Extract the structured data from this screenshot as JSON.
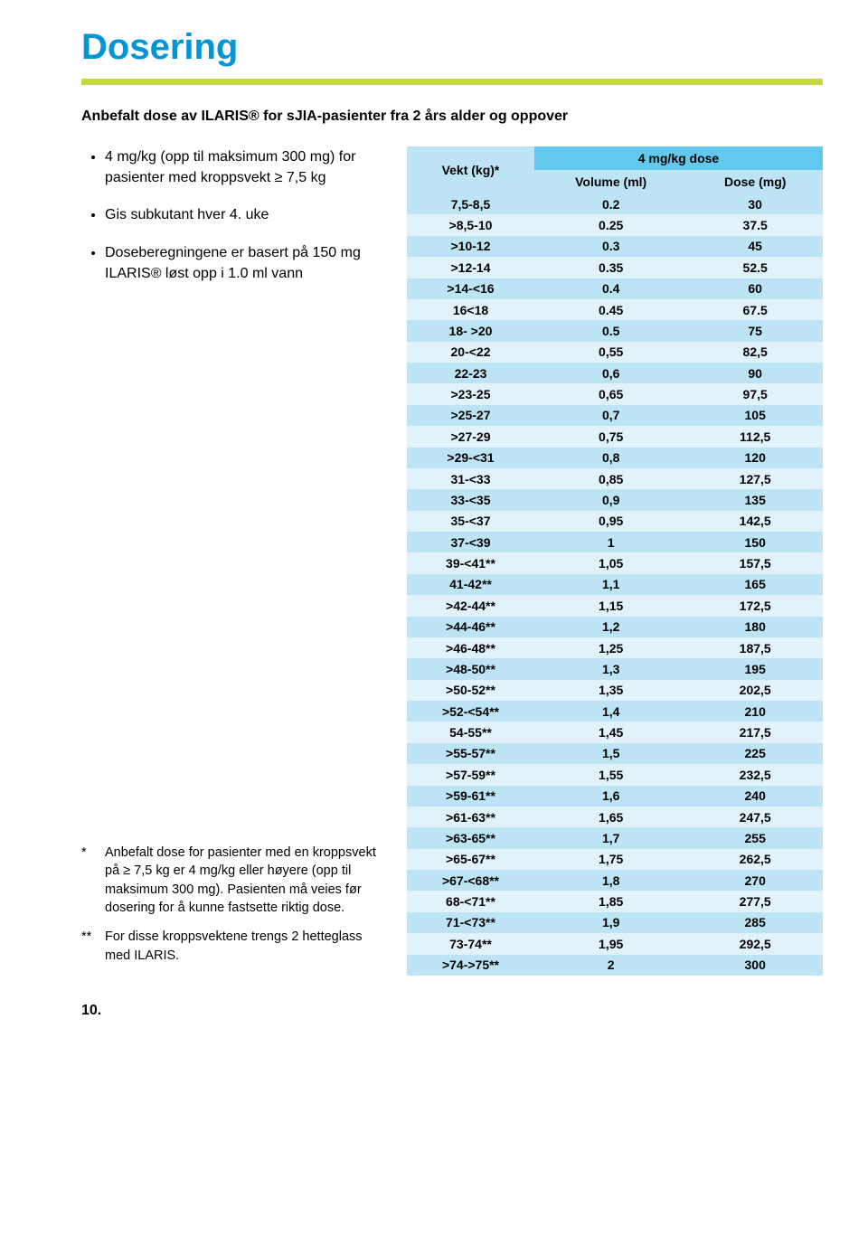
{
  "title": "Dosering",
  "accent_color": "#c5d843",
  "subtitle": "Anbefalt dose av ILARIS® for sJIA-pasienter fra 2 års alder og oppover",
  "bullets": [
    "4 mg/kg (opp til maksimum 300 mg) for pasienter med kroppsvekt ≥ 7,5 kg",
    "Gis subkutant hver 4. uke",
    "Doseberegningene er basert på 150 mg ILARIS® løst opp i 1.0 ml vann"
  ],
  "footnotes": [
    {
      "mark": "*",
      "text": "Anbefalt dose for pasienter med en kroppsvekt på ≥ 7,5 kg er 4 mg/kg eller høyere (opp til maksimum 300 mg). Pasienten må veies før dosering for å kunne fastsette riktig dose."
    },
    {
      "mark": "**",
      "text": "For disse kroppsvektene trengs 2 hetteglass med ILARIS."
    }
  ],
  "table": {
    "top_header": "4 mg/kg dose",
    "columns": [
      "Vekt (kg)*",
      "Volume (ml)",
      "Dose (mg)"
    ],
    "rows": [
      [
        "7,5-8,5",
        "0.2",
        "30"
      ],
      [
        ">8,5-10",
        "0.25",
        "37.5"
      ],
      [
        ">10-12",
        "0.3",
        "45"
      ],
      [
        ">12-14",
        "0.35",
        "52.5"
      ],
      [
        ">14-<16",
        "0.4",
        "60"
      ],
      [
        "16<18",
        "0.45",
        "67.5"
      ],
      [
        "18- >20",
        "0.5",
        "75"
      ],
      [
        "20-<22",
        "0,55",
        "82,5"
      ],
      [
        "22-23",
        "0,6",
        "90"
      ],
      [
        ">23-25",
        "0,65",
        "97,5"
      ],
      [
        ">25-27",
        "0,7",
        "105"
      ],
      [
        ">27-29",
        "0,75",
        "112,5"
      ],
      [
        ">29-<31",
        "0,8",
        "120"
      ],
      [
        "31-<33",
        "0,85",
        "127,5"
      ],
      [
        "33-<35",
        "0,9",
        "135"
      ],
      [
        "35-<37",
        "0,95",
        "142,5"
      ],
      [
        "37-<39",
        "1",
        "150"
      ],
      [
        "39-<41**",
        "1,05",
        "157,5"
      ],
      [
        "41-42**",
        "1,1",
        "165"
      ],
      [
        ">42-44**",
        "1,15",
        "172,5"
      ],
      [
        ">44-46**",
        "1,2",
        "180"
      ],
      [
        ">46-48**",
        "1,25",
        "187,5"
      ],
      [
        ">48-50**",
        "1,3",
        "195"
      ],
      [
        ">50-52**",
        "1,35",
        "202,5"
      ],
      [
        ">52-<54**",
        "1,4",
        "210"
      ],
      [
        "54-55**",
        "1,45",
        "217,5"
      ],
      [
        ">55-57**",
        "1,5",
        "225"
      ],
      [
        ">57-59**",
        "1,55",
        "232,5"
      ],
      [
        ">59-61**",
        "1,6",
        "240"
      ],
      [
        ">61-63**",
        "1,65",
        "247,5"
      ],
      [
        ">63-65**",
        "1,7",
        "255"
      ],
      [
        ">65-67**",
        "1,75",
        "262,5"
      ],
      [
        ">67-<68**",
        "1,8",
        "270"
      ],
      [
        "68-<71**",
        "1,85",
        "277,5"
      ],
      [
        "71-<73**",
        "1,9",
        "285"
      ],
      [
        "73-74**",
        "1,95",
        "292,5"
      ],
      [
        ">74->75**",
        "2",
        "300"
      ]
    ]
  },
  "page_number": "10."
}
